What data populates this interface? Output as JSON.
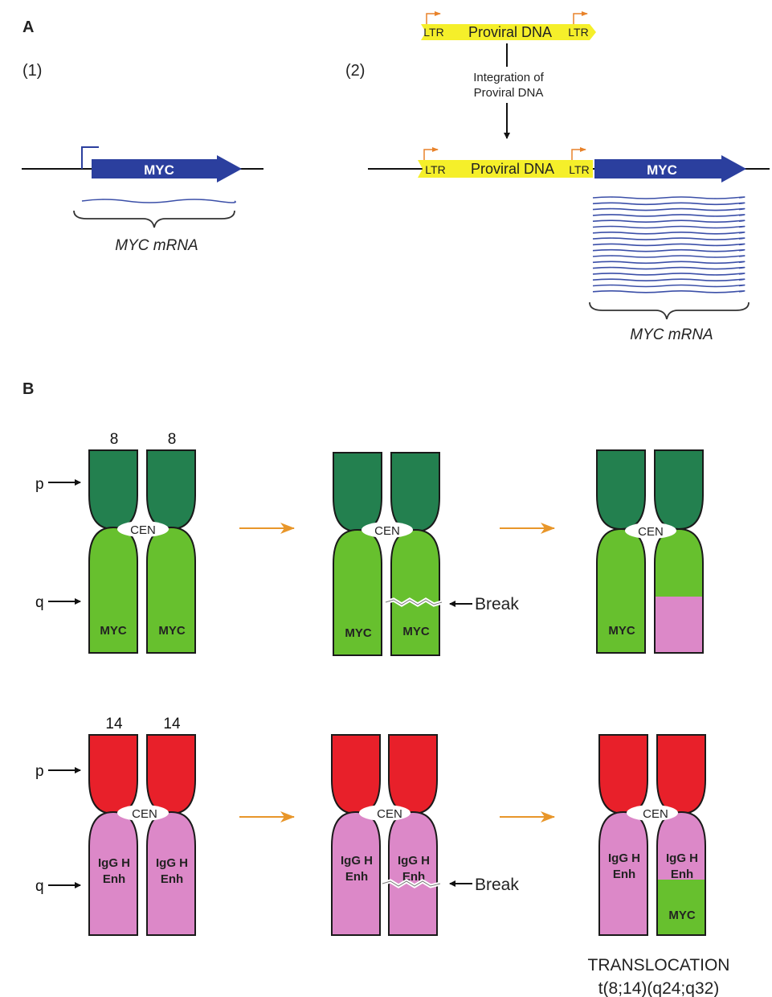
{
  "panel_a": {
    "letter": "A",
    "sub1_label": "(1)",
    "sub2_label": "(2)",
    "gene_label": "MYC",
    "mrna_label": "MYC mRNA",
    "ltr_label": "LTR",
    "proviral_label": "Proviral DNA",
    "integration_line1": "Integration of",
    "integration_line2": "Proviral DNA"
  },
  "panel_b": {
    "letter": "B",
    "chr8_label": "8",
    "chr14_label": "14",
    "p_arm": "p",
    "q_arm": "q",
    "cen_label": "CEN",
    "myc_label": "MYC",
    "igg_line1": "IgG H",
    "igg_line2": "Enh",
    "break_label": "Break",
    "translocation_line1": "TRANSLOCATION",
    "translocation_line2": "t(8;14)(q24;q32)"
  },
  "colors": {
    "myc_arrow": "#2b3f9e",
    "ltr_yellow": "#f5ef2a",
    "promoter_orange": "#e8822a",
    "chr8_p": "#23804f",
    "chr8_q": "#67c02e",
    "chr14_p": "#e8202a",
    "chr14_q": "#dc88c8",
    "process_arrow": "#e8962a",
    "mrna_wave": "#3b4fa8"
  }
}
